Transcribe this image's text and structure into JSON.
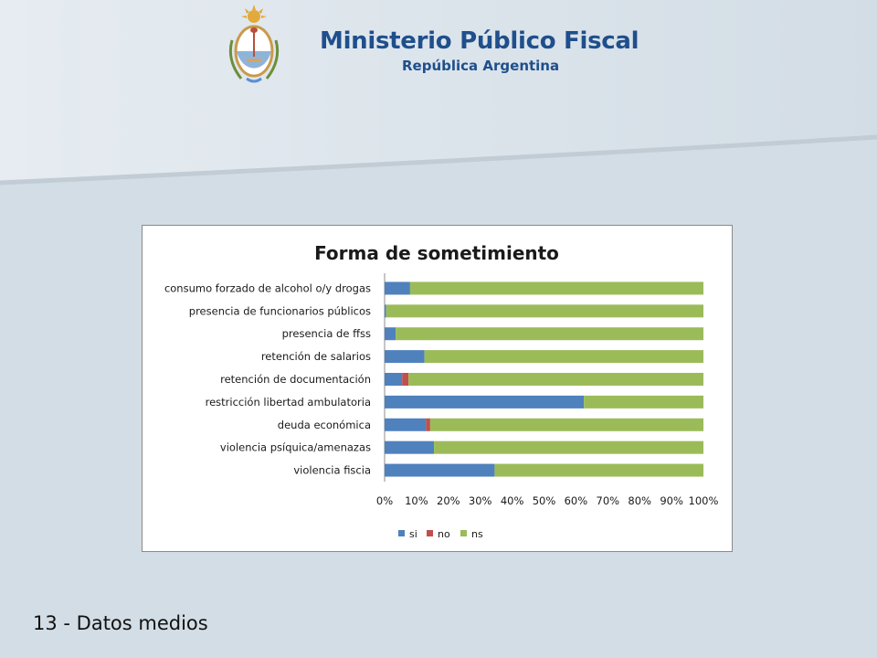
{
  "header": {
    "organization": "Ministerio Público Fiscal",
    "country": "República Argentina"
  },
  "colors": {
    "brand": "#1f4f8c",
    "si": "#4f81bd",
    "no": "#c0504d",
    "ns": "#9bbb59"
  },
  "chart_data": {
    "type": "bar",
    "orientation": "horizontal",
    "stacked": "percent",
    "title": "Forma de sometimiento",
    "categories": [
      "consumo forzado de alcohol o/y drogas",
      "presencia de funcionarios públicos",
      "presencia de ffss",
      "retención de salarios",
      "retención de documentación",
      "restricción libertad ambulatoria",
      "deuda económica",
      "violencia psíquica/amenazas",
      "violencia fiscia"
    ],
    "series": [
      {
        "name": "si",
        "values": [
          8,
          0.5,
          3.5,
          12.5,
          5.5,
          62.5,
          13,
          15.5,
          34.5
        ]
      },
      {
        "name": "no",
        "values": [
          0,
          0,
          0,
          0,
          2,
          0,
          1.3,
          0,
          0
        ]
      },
      {
        "name": "ns",
        "values": [
          92,
          99.5,
          96.5,
          87.5,
          92.5,
          37.5,
          85.7,
          84.5,
          65.5
        ]
      }
    ],
    "xlim": [
      0,
      100
    ],
    "xticks": [
      "0%",
      "10%",
      "20%",
      "30%",
      "40%",
      "50%",
      "60%",
      "70%",
      "80%",
      "90%",
      "100%"
    ],
    "legend_position": "bottom",
    "grid": false
  },
  "footer": {
    "label": "13 - Datos medios"
  }
}
